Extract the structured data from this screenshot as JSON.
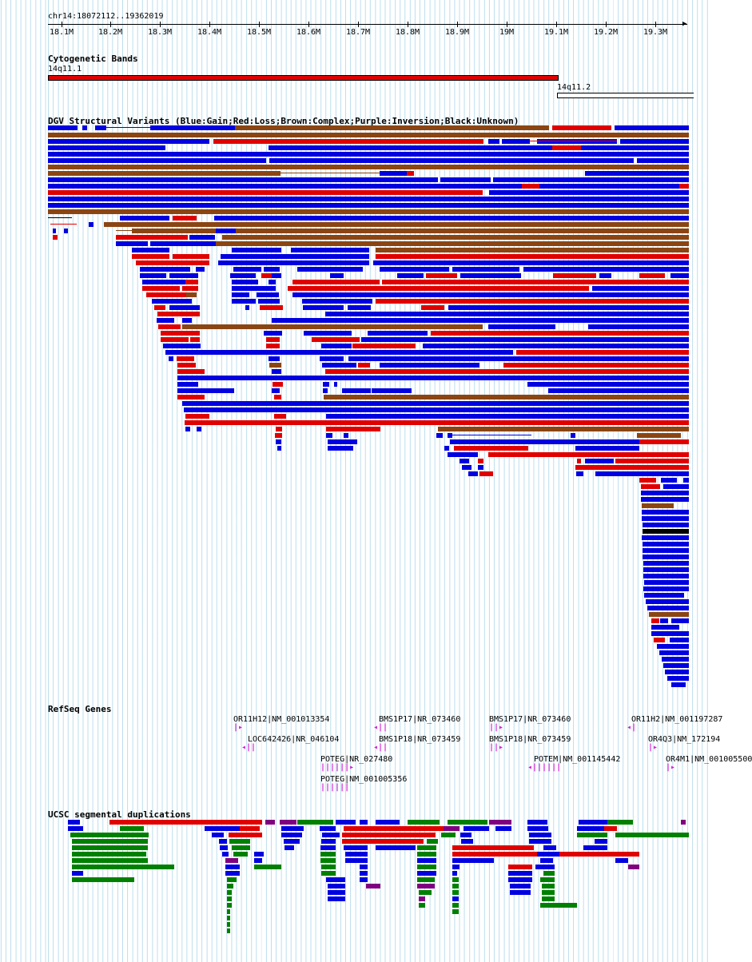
{
  "header": {
    "location": "chr14:18072112..19362019"
  },
  "ruler": {
    "ticks": [
      "18.1M",
      "18.2M",
      "18.3M",
      "18.4M",
      "18.5M",
      "18.6M",
      "18.7M",
      "18.8M",
      "18.9M",
      "19M",
      "19.1M",
      "19.2M",
      "19.3M"
    ]
  },
  "cytobands": {
    "title": "Cytogenetic Bands",
    "band1": "14q11.1",
    "band2": "14q11.2"
  },
  "dgv": {
    "title": "DGV Structural Variants (Blue:Gain;Red:Loss;Brown:Complex;Purple:Inversion;Black:Unknown)"
  },
  "refseq": {
    "title": "RefSeq Genes",
    "genes": [
      "OR11H12|NM_001013354",
      "LOC642426|NR_046104",
      "POTEG|NR_027480",
      "POTEG|NM_001005356",
      "BMS1P17|NR_073460",
      "BMS1P18|NR_073459",
      "BMS1P17|NR_073460",
      "BMS1P18|NR_073459",
      "POTEM|NM_001145442",
      "OR11H2|NM_001197287",
      "OR4Q3|NM_172194",
      "OR4M1|NM_001005500"
    ]
  },
  "segdups": {
    "title": "UCSC segmental duplications"
  },
  "colors": {
    "gain": "#0000e0",
    "loss": "#e00000",
    "complex": "#8b4513",
    "unknown": "#000000",
    "inversion": "#800080",
    "segdup_green": "#008000",
    "gene": "#d61fd6",
    "grid": "#87c4e1"
  }
}
